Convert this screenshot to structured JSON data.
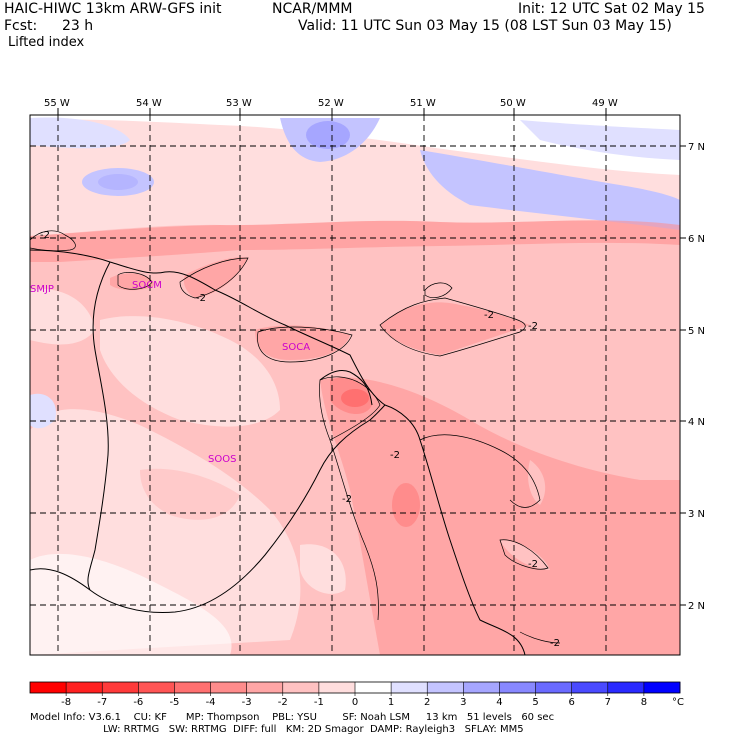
{
  "header": {
    "model": "HAIC-HIWC 13km ARW-GFS init",
    "org": "NCAR/MMM",
    "init": "Init: 12 UTC Sat 02 May 15",
    "fcst_label": "Fcst:",
    "fcst_value": "23 h",
    "valid": "Valid: 11 UTC Sun 03 May 15 (08 LST Sun 03 May 15)",
    "field": "Lifted index"
  },
  "map": {
    "lon_labels": [
      "55 W",
      "54 W",
      "53 W",
      "52 W",
      "51 W",
      "50 W",
      "49 W"
    ],
    "lat_labels": [
      "7 N",
      "6 N",
      "5 N",
      "4 N",
      "3 N",
      "2 N"
    ],
    "stations": [
      "SMJP",
      "SOCM",
      "SOCA",
      "SOOS"
    ],
    "contour_label": "-2",
    "colors": {
      "coast": "#000000",
      "grid": "#000000",
      "station_text": "#cc00cc"
    }
  },
  "colorbar": {
    "unit": "°C",
    "labels": [
      "-8",
      "-7",
      "-6",
      "-5",
      "-4",
      "-3",
      "-2",
      "-1",
      "0",
      "1",
      "2",
      "3",
      "4",
      "5",
      "6",
      "7",
      "8"
    ],
    "colors": [
      "#ff0000",
      "#ff2020",
      "#ff3a3a",
      "#ff5555",
      "#ff7070",
      "#ff8c8c",
      "#ffa6a6",
      "#ffc2c2",
      "#ffdede",
      "#ffffff",
      "#e0e0ff",
      "#c4c4ff",
      "#a6a6ff",
      "#8888ff",
      "#6a6aff",
      "#4a4aff",
      "#2a2aff",
      "#0000ff"
    ]
  },
  "footer": {
    "line1": "Model Info: V3.6.1    CU: KF      MP: Thompson    PBL: YSU        SF: Noah LSM     13 km   51 levels   60 sec",
    "line2": "                       LW: RRTMG   SW: RRTMG  DIFF: full   KM: 2D Smagor  DAMP: Rayleigh3   SFLAY: MM5"
  }
}
